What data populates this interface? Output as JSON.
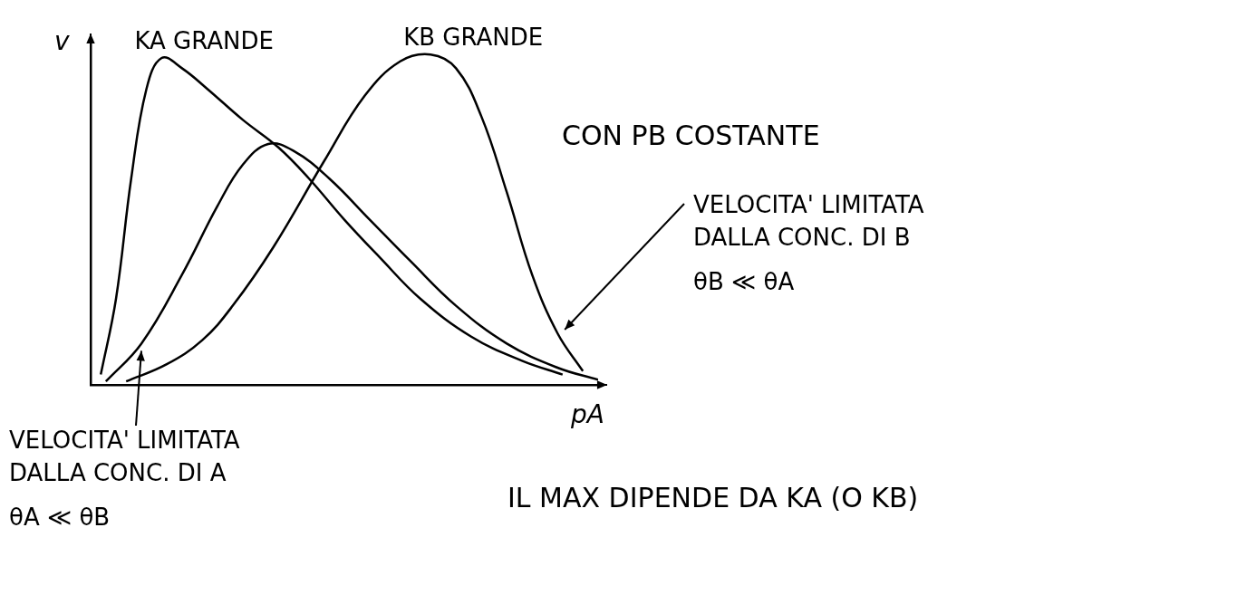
{
  "chart_data": {
    "type": "line",
    "x_label": "pA",
    "y_label": "v",
    "xlim": [
      0,
      10
    ],
    "ylim": [
      0,
      10
    ],
    "tick_labels": false,
    "grid": false,
    "series": [
      {
        "name": "KA GRANDE",
        "color": "#000000",
        "line_style": "solid",
        "marker": "none",
        "x": [
          0.2,
          0.5,
          0.8,
          1.1,
          1.4,
          1.8,
          2.3,
          3,
          3.7,
          4.3,
          5,
          5.7,
          6.5,
          7.5,
          8.5,
          9.3
        ],
        "values": [
          0.3,
          2.5,
          6,
          8.6,
          9.5,
          9.2,
          8.6,
          7.7,
          6.9,
          6.0,
          4.8,
          3.7,
          2.5,
          1.4,
          0.7,
          0.3
        ]
      },
      {
        "color": "#000000",
        "line_style": "solid",
        "marker": "none",
        "x": [
          0.3,
          1,
          1.8,
          2.5,
          3,
          3.5,
          4,
          4.7,
          5.5,
          6.3,
          7.2,
          8.2,
          9.2,
          10
        ],
        "values": [
          0.1,
          1.2,
          3.2,
          5.2,
          6.4,
          7.0,
          6.8,
          6.0,
          4.8,
          3.6,
          2.3,
          1.2,
          0.5,
          0.15
        ]
      },
      {
        "name": "KB GRANDE",
        "color": "#000000",
        "line_style": "solid",
        "marker": "none",
        "x": [
          0.7,
          1.5,
          2.2,
          2.8,
          3.6,
          4.6,
          5.4,
          6.1,
          6.7,
          7.2,
          7.7,
          8.2,
          8.7,
          9.2,
          9.7
        ],
        "values": [
          0.1,
          0.6,
          1.3,
          2.3,
          4.0,
          6.5,
          8.4,
          9.4,
          9.6,
          9.2,
          7.8,
          5.6,
          3.2,
          1.5,
          0.4
        ]
      }
    ],
    "annotations": [
      "CON PB COSTANTE",
      "VELOCITA' LIMITATA DALLA CONC. DI B",
      "θB ≪ θA",
      "VELOCITA' LIMITATA DALLA CONC. DI A",
      "θA ≪ θB",
      "IL MAX DIPENDE DA KA (O KB)"
    ]
  }
}
